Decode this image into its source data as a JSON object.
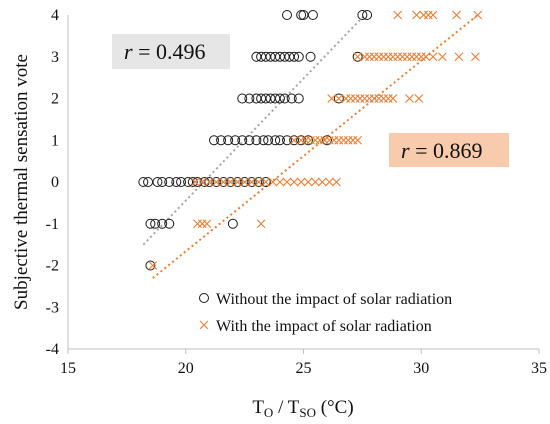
{
  "chart_data": {
    "type": "scatter",
    "xlabel_main": "T",
    "xlabel_sub1": "O",
    "xlabel_sep": " / T",
    "xlabel_sub2": "SO",
    "xlabel_unit": " (°C)",
    "ylabel": "Subjective thermal sensation vote",
    "xlim": [
      15,
      35
    ],
    "ylim": [
      -4,
      4
    ],
    "x_ticks": [
      "15",
      "20",
      "25",
      "30",
      "35"
    ],
    "y_ticks": [
      "-4",
      "-3",
      "-2",
      "-1",
      "0",
      "1",
      "2",
      "3",
      "4"
    ],
    "colors": {
      "without": "#1a1a1a",
      "with": "#ed7d31",
      "trend_without": "#a6a6a6",
      "trend_with": "#ed7d31",
      "r_without_bg": "#e6e6e6",
      "r_with_bg": "#f8cbad"
    },
    "annotations": {
      "r_without": {
        "italic": "r",
        "rest": " = 0.496"
      },
      "r_with": {
        "italic": "r",
        "rest": " = 0.869"
      }
    },
    "series": [
      {
        "name": "Without the impact of solar radiation",
        "marker": "circle",
        "trendline": {
          "x": [
            18.2,
            27.6
          ],
          "y": [
            -1.5,
            4.0
          ]
        },
        "points": [
          [
            24.3,
            4
          ],
          [
            24.9,
            4
          ],
          [
            25.0,
            4
          ],
          [
            25.4,
            4
          ],
          [
            27.5,
            4
          ],
          [
            27.7,
            4
          ],
          [
            23.0,
            3
          ],
          [
            23.2,
            3
          ],
          [
            23.4,
            3
          ],
          [
            23.6,
            3
          ],
          [
            23.8,
            3
          ],
          [
            24.0,
            3
          ],
          [
            24.2,
            3
          ],
          [
            24.4,
            3
          ],
          [
            24.6,
            3
          ],
          [
            24.8,
            3
          ],
          [
            25.3,
            3
          ],
          [
            27.3,
            3
          ],
          [
            22.4,
            2
          ],
          [
            22.7,
            2
          ],
          [
            23.0,
            2
          ],
          [
            23.2,
            2
          ],
          [
            23.4,
            2
          ],
          [
            23.6,
            2
          ],
          [
            23.8,
            2
          ],
          [
            24.0,
            2
          ],
          [
            24.2,
            2
          ],
          [
            24.5,
            2
          ],
          [
            24.8,
            2
          ],
          [
            26.5,
            2
          ],
          [
            21.2,
            1
          ],
          [
            21.5,
            1
          ],
          [
            21.8,
            1
          ],
          [
            22.1,
            1
          ],
          [
            22.4,
            1
          ],
          [
            22.7,
            1
          ],
          [
            23.0,
            1
          ],
          [
            23.3,
            1
          ],
          [
            23.5,
            1
          ],
          [
            23.8,
            1
          ],
          [
            24.0,
            1
          ],
          [
            24.3,
            1
          ],
          [
            24.6,
            1
          ],
          [
            24.9,
            1
          ],
          [
            25.2,
            1
          ],
          [
            26.0,
            1
          ],
          [
            18.2,
            0
          ],
          [
            18.4,
            0
          ],
          [
            18.8,
            0
          ],
          [
            19.0,
            0
          ],
          [
            19.3,
            0
          ],
          [
            19.6,
            0
          ],
          [
            19.8,
            0
          ],
          [
            20.1,
            0
          ],
          [
            20.3,
            0
          ],
          [
            20.5,
            0
          ],
          [
            20.8,
            0
          ],
          [
            21.0,
            0
          ],
          [
            21.3,
            0
          ],
          [
            21.6,
            0
          ],
          [
            21.9,
            0
          ],
          [
            22.2,
            0
          ],
          [
            22.5,
            0
          ],
          [
            22.8,
            0
          ],
          [
            23.1,
            0
          ],
          [
            23.4,
            0
          ],
          [
            18.5,
            -1
          ],
          [
            18.7,
            -1
          ],
          [
            19.0,
            -1
          ],
          [
            19.3,
            -1
          ],
          [
            22.0,
            -1
          ],
          [
            18.5,
            -2
          ]
        ]
      },
      {
        "name": "With the impact of solar radiation",
        "marker": "cross",
        "trendline": {
          "x": [
            18.6,
            32.4
          ],
          "y": [
            -2.3,
            4.0
          ]
        },
        "points": [
          [
            29.0,
            4
          ],
          [
            29.8,
            4
          ],
          [
            30.1,
            4
          ],
          [
            30.3,
            4
          ],
          [
            30.5,
            4
          ],
          [
            31.5,
            4
          ],
          [
            32.4,
            4
          ],
          [
            27.3,
            3
          ],
          [
            27.6,
            3
          ],
          [
            27.8,
            3
          ],
          [
            28.0,
            3
          ],
          [
            28.2,
            3
          ],
          [
            28.4,
            3
          ],
          [
            28.6,
            3
          ],
          [
            28.8,
            3
          ],
          [
            29.0,
            3
          ],
          [
            29.2,
            3
          ],
          [
            29.4,
            3
          ],
          [
            29.6,
            3
          ],
          [
            29.8,
            3
          ],
          [
            30.0,
            3
          ],
          [
            30.2,
            3
          ],
          [
            30.5,
            3
          ],
          [
            30.9,
            3
          ],
          [
            31.6,
            3
          ],
          [
            32.3,
            3
          ],
          [
            26.2,
            2
          ],
          [
            26.5,
            2
          ],
          [
            26.8,
            2
          ],
          [
            27.0,
            2
          ],
          [
            27.2,
            2
          ],
          [
            27.4,
            2
          ],
          [
            27.6,
            2
          ],
          [
            27.8,
            2
          ],
          [
            28.0,
            2
          ],
          [
            28.2,
            2
          ],
          [
            28.4,
            2
          ],
          [
            28.6,
            2
          ],
          [
            28.8,
            2
          ],
          [
            29.5,
            2
          ],
          [
            29.9,
            2
          ],
          [
            24.6,
            1
          ],
          [
            24.9,
            1
          ],
          [
            25.1,
            1
          ],
          [
            25.3,
            1
          ],
          [
            25.5,
            1
          ],
          [
            25.7,
            1
          ],
          [
            25.9,
            1
          ],
          [
            26.1,
            1
          ],
          [
            26.3,
            1
          ],
          [
            26.5,
            1
          ],
          [
            26.7,
            1
          ],
          [
            26.9,
            1
          ],
          [
            27.1,
            1
          ],
          [
            27.3,
            1
          ],
          [
            20.4,
            0
          ],
          [
            20.7,
            0
          ],
          [
            21.0,
            0
          ],
          [
            21.3,
            0
          ],
          [
            21.6,
            0
          ],
          [
            21.9,
            0
          ],
          [
            22.2,
            0
          ],
          [
            22.5,
            0
          ],
          [
            22.8,
            0
          ],
          [
            23.1,
            0
          ],
          [
            23.4,
            0
          ],
          [
            23.7,
            0
          ],
          [
            24.0,
            0
          ],
          [
            24.3,
            0
          ],
          [
            24.6,
            0
          ],
          [
            24.9,
            0
          ],
          [
            25.2,
            0
          ],
          [
            25.5,
            0
          ],
          [
            25.8,
            0
          ],
          [
            26.1,
            0
          ],
          [
            26.4,
            0
          ],
          [
            20.5,
            -1
          ],
          [
            20.7,
            -1
          ],
          [
            20.9,
            -1
          ],
          [
            23.2,
            -1
          ],
          [
            18.6,
            -2
          ]
        ]
      }
    ]
  }
}
